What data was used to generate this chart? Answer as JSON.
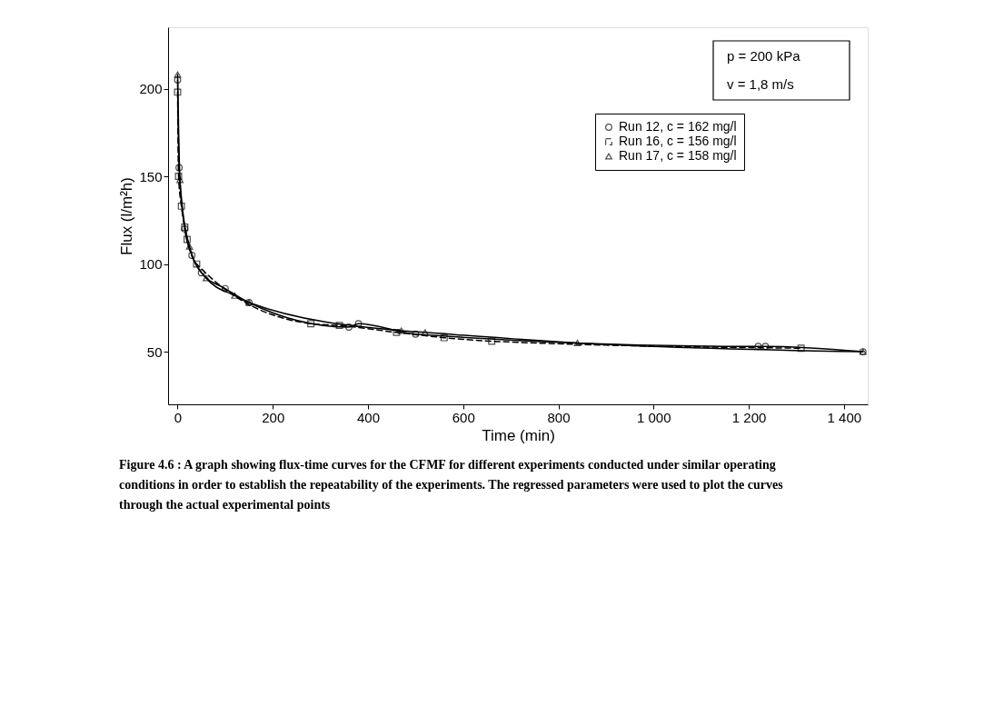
{
  "chart_data": {
    "type": "line",
    "xlabel": "Time (min)",
    "ylabel": "Flux (l/m²h)",
    "xlim": [
      -20,
      1450
    ],
    "ylim": [
      20,
      235
    ],
    "xticks": [
      0,
      200,
      400,
      600,
      800,
      {
        "value": 1000,
        "label": "1 000"
      },
      {
        "value": 1200,
        "label": "1 200"
      },
      {
        "value": 1400,
        "label": "1 400"
      }
    ],
    "yticks": [
      50,
      100,
      150,
      200
    ],
    "grid": false,
    "legend": "top right",
    "series": [
      {
        "name": "Run 12, c = 162 mg/l",
        "color": "#000000",
        "marker": "circle",
        "line_style": "solid",
        "x": [
          0,
          3,
          15,
          30,
          50,
          100,
          150,
          360,
          380,
          500,
          1220,
          1235,
          1440
        ],
        "values": [
          205,
          155,
          120,
          105,
          95,
          86,
          78,
          64,
          66,
          60,
          53,
          53,
          50
        ]
      },
      {
        "name": "Run 16, c = 156 mg/l",
        "color": "#000000",
        "marker": "square",
        "line_style": "dashed",
        "x": [
          0,
          2,
          8,
          15,
          20,
          40,
          280,
          340,
          460,
          560,
          660,
          1310
        ],
        "values": [
          198,
          150,
          133,
          121,
          114,
          100,
          66,
          65,
          61,
          58,
          56,
          52
        ]
      },
      {
        "name": "Run 17, c = 158 mg/l",
        "color": "#000000",
        "marker": "triangle",
        "line_style": "solid",
        "x": [
          0,
          5,
          25,
          60,
          120,
          150,
          470,
          520,
          840,
          1440
        ],
        "values": [
          208,
          148,
          110,
          92,
          82,
          78,
          62,
          61,
          55,
          50
        ]
      }
    ],
    "annotations": [
      "p = 200 kPa",
      "v = 1,8 m/s",
      "Figure 4.6 : A graph showing flux-time curves for the CFMF for different experiments conducted under similar operating conditions in order to establish the repeatability of the experiments. The regressed parameters were used to plot the curves through the actual experimental points"
    ]
  }
}
